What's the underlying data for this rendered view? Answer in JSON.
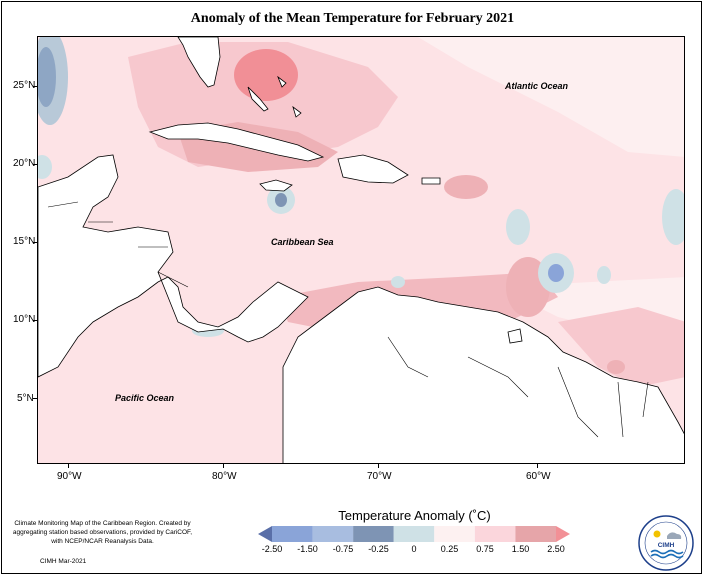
{
  "map": {
    "title": "Anomaly of the Mean Temperature for February 2021",
    "x_ticks": [
      "90°W",
      "80°W",
      "70°W",
      "60°W"
    ],
    "y_ticks": [
      "25°N",
      "20°N",
      "15°N",
      "10°N",
      "5°N"
    ],
    "labels": {
      "atlantic": "Atlantic Ocean",
      "caribbean": "Caribbean Sea",
      "pacific": "Pacific Ocean"
    }
  },
  "legend": {
    "title": "Temperature Anomaly (˚C)",
    "ticks": [
      "-2.50",
      "-1.50",
      "-0.75",
      "-0.25",
      "0",
      "0.25",
      "0.75",
      "1.50",
      "2.50"
    ],
    "colors": [
      "#5a6fa8",
      "#8aa4d8",
      "#a8bde0",
      "#7e94b4",
      "#cfe1e6",
      "#fdf1f1",
      "#fbd6dc",
      "#e6a5a9",
      "#f29096"
    ]
  },
  "credit": {
    "text": "Climate Monitoring Map of the Caribbean Region. Created by aggregating station based observations, provided by CariCOF, with NCEP/NCAR Reanalysis Data.",
    "date": "CIMH Mar-2021"
  },
  "logo": {
    "text": "CIMH",
    "icon": "cimh-logo-icon"
  }
}
